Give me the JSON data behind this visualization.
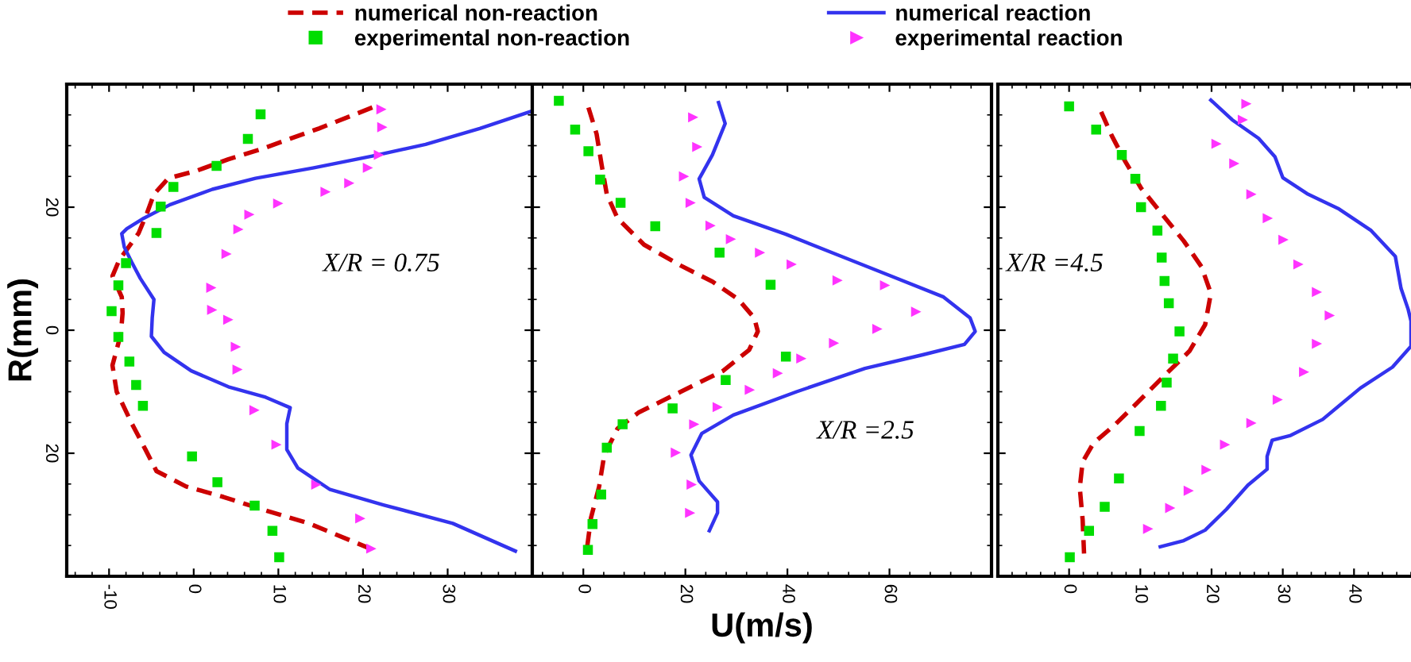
{
  "chart_data": [
    {
      "type": "line",
      "ylabel": "R(mm)",
      "legend": "top",
      "grid": false,
      "xlim": [
        -15,
        40
      ],
      "xticks": [
        -10,
        0,
        10,
        20,
        30
      ],
      "ylim": [
        -40,
        40
      ],
      "yticks": [
        {
          "value": -20,
          "label": "20"
        },
        0,
        20
      ],
      "annotations": [
        "X/R = 0.75"
      ],
      "series": [
        {
          "name": "numerical non-reaction",
          "type": "line",
          "line_style": "dashed",
          "marker": "none",
          "color": "#cc0000",
          "x": [
            21.1,
            14.8,
            7.9,
            4.1,
            0.3,
            -3.0,
            -4.7,
            -5.5,
            -6.5,
            -8.8,
            -9.6,
            -8.5,
            -8.4,
            -8.6,
            -9.6,
            -9.1,
            -7.3,
            -5.7,
            -4.4,
            -0.9,
            3.5,
            8.5,
            13.6,
            20.5
          ],
          "values": [
            36.2,
            32.8,
            29.4,
            27.8,
            25.9,
            24.7,
            22.1,
            19.1,
            15.8,
            11.4,
            8.8,
            5.4,
            2.8,
            -0.6,
            -5.7,
            -10,
            -15.2,
            -19.4,
            -22.9,
            -25.4,
            -27.1,
            -29.3,
            -31.4,
            -35.3
          ]
        },
        {
          "name": "experimental non-reaction",
          "type": "scatter",
          "marker": "square",
          "color": "#00dd00",
          "x": [
            7.9,
            6.4,
            2.7,
            -2.4,
            -3.9,
            -4.4,
            -8.0,
            -8.9,
            -9.7,
            -8.9,
            -7.6,
            -6.8,
            -6.0,
            -0.2,
            2.8,
            7.2,
            9.3,
            10.1
          ],
          "values": [
            35.1,
            31.1,
            26.7,
            23.3,
            20.1,
            15.8,
            10.9,
            7.3,
            3.1,
            -1.1,
            -5.1,
            -8.9,
            -12.3,
            -20.5,
            -24.7,
            -28.5,
            -32.6,
            -36.9
          ]
        },
        {
          "name": "numerical reaction",
          "type": "line",
          "line_style": "solid",
          "marker": "none",
          "color": "#3333ee",
          "x": [
            39.7,
            33.8,
            27.4,
            21.1,
            14.2,
            7.3,
            2.2,
            -2.8,
            -5.9,
            -7.9,
            -8.5,
            -8.2,
            -7.3,
            -6.3,
            -4.7,
            -4.9,
            -5.0,
            -3.5,
            -0.3,
            4.1,
            8.5,
            11.4,
            11.0,
            11.0,
            12.3,
            16.1,
            22.4,
            30.6,
            38.0
          ],
          "values": [
            35.5,
            32.8,
            30.2,
            28.3,
            26.4,
            24.7,
            22.9,
            20.4,
            18.2,
            16.5,
            15.7,
            13.5,
            11.0,
            8.4,
            5.0,
            2.0,
            -1.0,
            -3.6,
            -6.6,
            -9.2,
            -10.9,
            -12.6,
            -15.2,
            -19.4,
            -22.4,
            -25.9,
            -28.4,
            -31.4,
            -35.9
          ]
        },
        {
          "name": "experimental reaction",
          "type": "scatter",
          "marker": "triangle",
          "color": "#ff33ff",
          "x": [
            22.1,
            22.2,
            21.8,
            20.5,
            18.3,
            15.5,
            9.9,
            6.5,
            5.2,
            3.8,
            2.0,
            2.1,
            4.0,
            4.9,
            5.1,
            7.1,
            9.7,
            14.4,
            19.6,
            20.9
          ],
          "values": [
            35.9,
            33.0,
            28.5,
            26.4,
            23.9,
            22.5,
            20.6,
            18.8,
            16.4,
            12.4,
            6.9,
            3.3,
            1.7,
            -2.7,
            -6.4,
            -13.0,
            -18.6,
            -25.1,
            -30.6,
            -35.5
          ]
        }
      ]
    },
    {
      "type": "line",
      "xlabel": "U(m/s)",
      "tick_labels": "x",
      "grid": false,
      "xlim": [
        -10,
        80
      ],
      "xticks": [
        0,
        20,
        40,
        60
      ],
      "ylim": [
        -40,
        40
      ],
      "yticks": [
        -20,
        0,
        20
      ],
      "annotations": [
        "X/R =2.5"
      ],
      "series": [
        {
          "type": "line",
          "line_style": "dashed",
          "marker": "none",
          "color": "#cc0000",
          "x": [
            1.0,
            2.6,
            3.6,
            4.6,
            6.7,
            11.9,
            19.1,
            25.3,
            30.4,
            33.5,
            34.2,
            32.5,
            27.4,
            19.1,
            10.8,
            6.7,
            4.1,
            3.1,
            1.5,
            0.7
          ],
          "values": [
            36.2,
            31.9,
            26.8,
            22.1,
            18.2,
            13.9,
            10.5,
            7.9,
            5.0,
            2.0,
            -0.2,
            -3.2,
            -6.6,
            -10,
            -13.4,
            -16.0,
            -20.3,
            -25.4,
            -30.5,
            -35.6
          ]
        },
        {
          "type": "scatter",
          "marker": "square",
          "color": "#00dd00",
          "x": [
            -4.8,
            -1.6,
            1.0,
            3.3,
            7.3,
            14.1,
            26.7,
            36.7,
            39.7,
            27.9,
            17.5,
            7.7,
            4.6,
            3.5,
            1.8,
            0.9
          ],
          "values": [
            37.3,
            32.6,
            29.1,
            24.5,
            20.7,
            16.9,
            12.6,
            7.4,
            -4.3,
            -8.1,
            -12.7,
            -15.3,
            -19.1,
            -26.7,
            -31.5,
            -35.7
          ]
        },
        {
          "type": "line",
          "line_style": "solid",
          "marker": "none",
          "color": "#3333ee",
          "x": [
            26.5,
            27.8,
            25.3,
            22.7,
            23.7,
            29.4,
            39.7,
            50,
            60.3,
            70.6,
            75.8,
            76.8,
            74.7,
            66.5,
            55.2,
            41.8,
            29.4,
            23.2,
            21.1,
            22.7,
            26.3,
            26.3,
            24.7
          ],
          "values": [
            37.0,
            33.6,
            28.5,
            24.6,
            21.6,
            18.6,
            15.6,
            12.2,
            8.8,
            5.4,
            2.0,
            -0.2,
            -2.3,
            -4.0,
            -6.2,
            -10.0,
            -13.8,
            -16.8,
            -20.3,
            -24.5,
            -27.9,
            -29.7,
            -32.6
          ]
        },
        {
          "type": "scatter",
          "marker": "triangle",
          "color": "#ff33ff",
          "x": [
            21.4,
            22.2,
            19.6,
            20.9,
            24.8,
            28.8,
            34.5,
            40.7,
            49.7,
            59.0,
            65.1,
            57.5,
            49.0,
            42.6,
            38.0,
            32.5,
            26.2,
            21.6,
            18.0,
            21.1,
            20.8
          ],
          "values": [
            34.6,
            29.8,
            25.0,
            20.7,
            17.0,
            14.8,
            12.6,
            10.7,
            8.1,
            7.3,
            3.0,
            0.2,
            -2.1,
            -4.6,
            -7.0,
            -9.7,
            -12.5,
            -15.3,
            -19.9,
            -25.1,
            -29.7
          ]
        }
      ]
    },
    {
      "type": "line",
      "tick_labels": "x",
      "grid": false,
      "xlim": [
        -10,
        48
      ],
      "xticks": [
        0,
        10,
        20,
        30,
        40
      ],
      "ylim": [
        -40,
        40
      ],
      "yticks": [
        -20,
        0,
        20
      ],
      "annotations": [
        "X/R =4.5"
      ],
      "series": [
        {
          "type": "line",
          "line_style": "dashed",
          "marker": "none",
          "color": "#cc0000",
          "x": [
            4.5,
            6.0,
            7.9,
            10.1,
            13.1,
            16.1,
            18.6,
            19.9,
            19.1,
            16.9,
            13.1,
            9.4,
            6.4,
            3.4,
            1.9,
            1.5,
            1.9,
            2.1
          ],
          "values": [
            35.5,
            31.6,
            27.4,
            23.1,
            18.8,
            14.5,
            10.3,
            6.0,
            0.9,
            -3.4,
            -7.7,
            -12.0,
            -15.4,
            -18.4,
            -21.4,
            -25.6,
            -30.8,
            -36.3
          ]
        },
        {
          "type": "scatter",
          "marker": "square",
          "color": "#00dd00",
          "x": [
            0,
            3.8,
            7.4,
            9.3,
            10.1,
            12.4,
            13.0,
            13.4,
            14.0,
            15.5,
            14.6,
            13.7,
            12.9,
            9.9,
            7.0,
            5.0,
            2.8,
            0.1
          ],
          "values": [
            36.4,
            32.6,
            28.5,
            24.6,
            20.0,
            16.2,
            11.8,
            8.0,
            4.4,
            -0.2,
            -4.6,
            -8.5,
            -12.3,
            -16.4,
            -24.1,
            -28.7,
            -32.6,
            -36.9
          ]
        },
        {
          "type": "line",
          "line_style": "solid",
          "marker": "none",
          "color": "#3333ee",
          "x": [
            19.9,
            22.9,
            26.6,
            28.9,
            30.0,
            33.4,
            37.9,
            42.4,
            45.8,
            46.6,
            47.6,
            48.0,
            48.0,
            45.4,
            40.9,
            35.6,
            31.1,
            28.5,
            27.8,
            27.8,
            25.1,
            22.1,
            19.1,
            16.1,
            12.8
          ],
          "values": [
            37.4,
            34.2,
            31.2,
            28.2,
            24.8,
            22.2,
            19.7,
            16.2,
            12.0,
            6.8,
            3.4,
            1.5,
            -2.6,
            -6.0,
            -9.4,
            -14.5,
            -17.1,
            -17.9,
            -20.5,
            -22.6,
            -25.2,
            -29.1,
            -32.5,
            -34.2,
            -35.2
          ]
        },
        {
          "type": "scatter",
          "marker": "triangle",
          "color": "#ff33ff",
          "x": [
            24.8,
            24.3,
            20.6,
            23.1,
            25.5,
            27.8,
            30.0,
            32.1,
            34.7,
            36.5,
            34.7,
            32.9,
            29.2,
            25.5,
            21.8,
            19.2,
            16.7,
            14.1,
            11.0
          ],
          "values": [
            36.8,
            34.2,
            30.3,
            27.1,
            22.1,
            18.2,
            14.7,
            10.7,
            6.2,
            2.4,
            -2.2,
            -6.8,
            -11.3,
            -15.1,
            -18.6,
            -22.7,
            -26.1,
            -28.9,
            -32.3
          ]
        }
      ]
    }
  ]
}
